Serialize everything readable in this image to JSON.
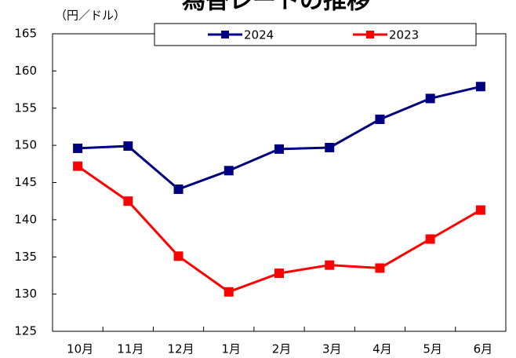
{
  "chart_data": {
    "type": "line",
    "title": "為替レートの推移",
    "y_label": "（円／ドル）",
    "categories": [
      "10月",
      "11月",
      "12月",
      "1月",
      "2月",
      "3月",
      "4月",
      "5月",
      "6月"
    ],
    "series": [
      {
        "name": "2024",
        "color": "#000080",
        "values": [
          149.6,
          149.9,
          144.1,
          146.6,
          149.5,
          149.7,
          153.5,
          156.3,
          157.9
        ]
      },
      {
        "name": "2023",
        "color": "#ff0000",
        "values": [
          147.2,
          142.5,
          135.1,
          130.3,
          132.8,
          133.9,
          133.5,
          137.4,
          141.3
        ]
      }
    ],
    "ylim": [
      125,
      165
    ],
    "yticks": [
      125,
      130,
      135,
      140,
      145,
      150,
      155,
      160,
      165
    ],
    "grid": false
  }
}
